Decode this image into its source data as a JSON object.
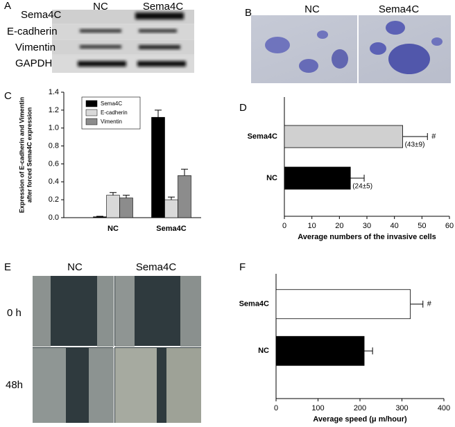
{
  "panels": {
    "a": "A",
    "b": "B",
    "c": "C",
    "d": "D",
    "e": "E",
    "f": "F"
  },
  "blot": {
    "columns": [
      "NC",
      "Sema4C"
    ],
    "rows": [
      "Sema4C",
      "E-cadherin",
      "Vimentin",
      "GAPDH"
    ]
  },
  "invasion_images": {
    "columns": [
      "NC",
      "Sema4C"
    ]
  },
  "wound_images": {
    "columns": [
      "NC",
      "Sema4C"
    ],
    "rows": [
      "0 h",
      "48h"
    ]
  },
  "chart_data": [
    {
      "type": "bar",
      "y_label": [
        "Expression of E-cadherin and Vimentin",
        "after forced Sema4C expression"
      ],
      "categories": [
        "NC",
        "Sema4C"
      ],
      "series": [
        {
          "name": "Sema4C",
          "color": "#000000",
          "values": [
            0.01,
            1.12
          ],
          "errors": [
            0.005,
            0.08
          ]
        },
        {
          "name": "E-cadherin",
          "color": "#d9d9d9",
          "values": [
            0.25,
            0.2
          ],
          "errors": [
            0.03,
            0.03
          ]
        },
        {
          "name": "Vimentin",
          "color": "#8c8c8c",
          "values": [
            0.22,
            0.47
          ],
          "errors": [
            0.03,
            0.07
          ]
        }
      ],
      "ylim": [
        0,
        1.4
      ],
      "yticks": [
        {
          "value": 0,
          "label": "0.0"
        },
        0.2,
        0.4,
        0.6,
        0.8,
        {
          "value": 1,
          "label": "1.0"
        },
        1.2,
        1.4
      ]
    },
    {
      "type": "barh",
      "x_label": "Average numbers of the invasive cells",
      "categories": [
        "NC",
        "Sema4C"
      ],
      "values": [
        24,
        43
      ],
      "errors": [
        5,
        9
      ],
      "value_labels": [
        "(24±5)",
        "(43±9)"
      ],
      "significance": [
        null,
        "#"
      ],
      "colors": [
        "#000000",
        "#d0d0d0"
      ],
      "xlim": [
        0,
        60
      ],
      "xticks": [
        0,
        10,
        20,
        30,
        40,
        50,
        60
      ]
    },
    {
      "type": "barh",
      "x_label": "Average speed (μ m/hour)",
      "categories": [
        "NC",
        "Sema4C"
      ],
      "values": [
        210,
        320
      ],
      "errors": [
        20,
        30
      ],
      "significance": [
        null,
        "#"
      ],
      "colors": [
        "#000000",
        "#ffffff"
      ],
      "xlim": [
        0,
        400
      ],
      "xticks": [
        0,
        100,
        200,
        300,
        400
      ]
    }
  ]
}
